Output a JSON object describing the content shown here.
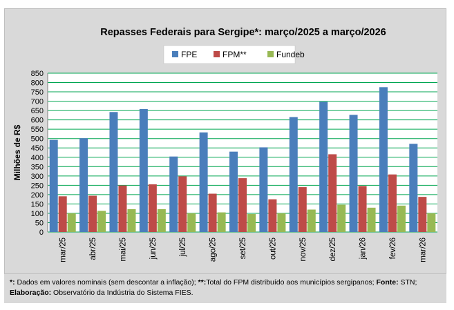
{
  "chart_data": {
    "type": "bar",
    "title": "Repasses Federais para Sergipe*: março/2025 a março/2026",
    "ylabel": "Milhões de R$",
    "xlabel": "",
    "ylim": [
      0,
      850
    ],
    "ytick_step": 50,
    "grid": true,
    "legend_position": "top",
    "categories": [
      "mar/25",
      "abr/25",
      "mai/25",
      "jun/25",
      "jul/25",
      "ago/25",
      "set/25",
      "out/25",
      "nov/25",
      "dez/25",
      "jan/26",
      "fev/26",
      "mar/26"
    ],
    "series": [
      {
        "name": "FPE",
        "color": "#4a7ebb",
        "values": [
          493,
          502,
          642,
          658,
          404,
          533,
          430,
          453,
          615,
          697,
          627,
          775,
          472
        ]
      },
      {
        "name": "FPM**",
        "color": "#be4b48",
        "values": [
          191,
          194,
          249,
          255,
          298,
          205,
          288,
          175,
          240,
          416,
          246,
          308,
          188
        ]
      },
      {
        "name": "Fundeb",
        "color": "#98b954",
        "values": [
          100,
          113,
          122,
          122,
          100,
          105,
          96,
          100,
          120,
          146,
          130,
          141,
          100
        ]
      }
    ]
  },
  "colors": {
    "grid": "#00a651",
    "plot_bg": "#ffffff",
    "frame_bg": "#d9d9d9"
  },
  "footnote": {
    "line1_b1": "*:",
    "line1_t1": " Dados em valores nominais (sem descontar a inflação); ",
    "line1_b2": "**:",
    "line1_t2": "Total  do FPM distribuído aos municípios sergipanos; ",
    "line1_b3": "Fonte:",
    "line1_t3": " STN;",
    "line2_b1": "Elaboração:",
    "line2_t1": " Observatório da Indústria do Sistema FIES."
  }
}
